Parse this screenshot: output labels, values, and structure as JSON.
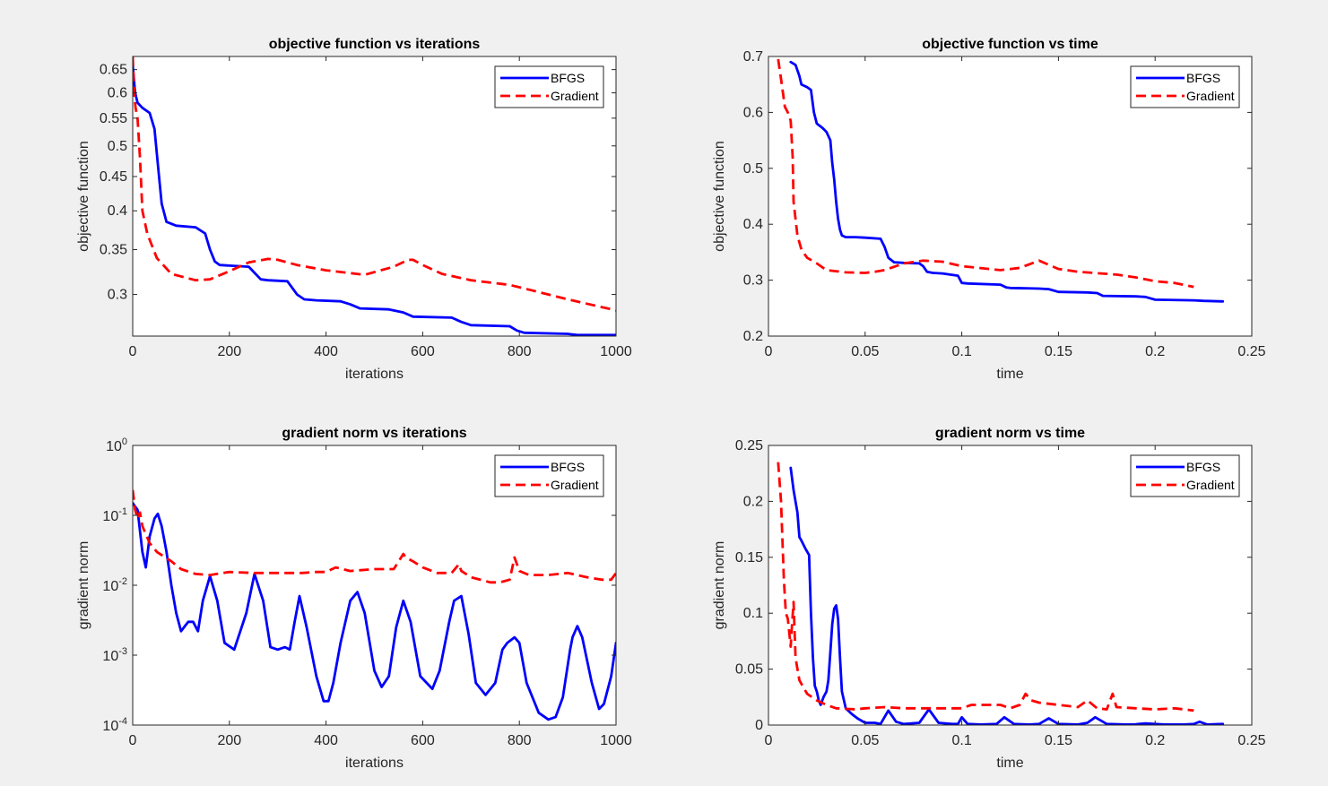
{
  "chart_data": [
    {
      "type": "line",
      "title": "objective function vs iterations",
      "xlabel": "iterations",
      "ylabel": "objective function",
      "xlim": [
        0,
        1000
      ],
      "ylim": [
        0.26,
        0.68
      ],
      "y_scale": "log",
      "xticks": [
        0,
        200,
        400,
        600,
        800,
        1000
      ],
      "xtick_labels": [
        "0",
        "200",
        "400",
        "600",
        "800",
        "1000"
      ],
      "yticks": [
        0.3,
        0.35,
        0.4,
        0.45,
        0.5,
        0.55,
        0.6,
        0.65
      ],
      "ytick_labels": [
        "0.3",
        "0.35",
        "0.4",
        "0.45",
        "0.5",
        "0.55",
        "0.6",
        "0.65"
      ],
      "legend": "top-right",
      "series": [
        {
          "name": "BFGS",
          "color": "#0000ff",
          "style": "solid",
          "x": [
            0,
            5,
            10,
            20,
            35,
            45,
            52,
            60,
            70,
            90,
            130,
            150,
            160,
            170,
            180,
            240,
            265,
            280,
            320,
            340,
            355,
            380,
            430,
            450,
            470,
            530,
            560,
            580,
            660,
            680,
            700,
            780,
            795,
            810,
            900,
            920,
            1000
          ],
          "y": [
            0.66,
            0.6,
            0.58,
            0.57,
            0.56,
            0.53,
            0.47,
            0.41,
            0.385,
            0.38,
            0.378,
            0.37,
            0.35,
            0.336,
            0.332,
            0.33,
            0.316,
            0.315,
            0.314,
            0.3,
            0.295,
            0.294,
            0.293,
            0.29,
            0.286,
            0.285,
            0.282,
            0.278,
            0.277,
            0.273,
            0.27,
            0.269,
            0.265,
            0.263,
            0.262,
            0.261,
            0.261
          ]
        },
        {
          "name": "Gradient",
          "color": "#ff0000",
          "style": "dashed",
          "x": [
            0,
            3,
            6,
            10,
            15,
            20,
            30,
            50,
            80,
            130,
            160,
            200,
            240,
            280,
            300,
            340,
            400,
            480,
            540,
            570,
            580,
            600,
            640,
            700,
            780,
            820,
            900,
            1000
          ],
          "y": [
            0.68,
            0.6,
            0.57,
            0.55,
            0.48,
            0.4,
            0.37,
            0.34,
            0.322,
            0.315,
            0.316,
            0.325,
            0.335,
            0.339,
            0.338,
            0.332,
            0.326,
            0.321,
            0.33,
            0.338,
            0.338,
            0.332,
            0.322,
            0.315,
            0.31,
            0.305,
            0.295,
            0.284
          ]
        }
      ]
    },
    {
      "type": "line",
      "title": "objective function vs time",
      "xlabel": "time",
      "ylabel": "objective function",
      "xlim": [
        0,
        0.25
      ],
      "ylim": [
        0.2,
        0.7
      ],
      "xticks": [
        0,
        0.05,
        0.1,
        0.15,
        0.2,
        0.25
      ],
      "xtick_labels": [
        "0",
        "0.05",
        "0.1",
        "0.15",
        "0.2",
        "0.25"
      ],
      "yticks": [
        0.2,
        0.3,
        0.4,
        0.5,
        0.6,
        0.7
      ],
      "ytick_labels": [
        "0.2",
        "0.3",
        "0.4",
        "0.5",
        "0.6",
        "0.7"
      ],
      "legend": "top-right",
      "series": [
        {
          "name": "BFGS",
          "color": "#0000ff",
          "style": "solid",
          "x": [
            0.0115,
            0.014,
            0.016,
            0.017,
            0.02,
            0.022,
            0.0235,
            0.025,
            0.028,
            0.03,
            0.032,
            0.033,
            0.034,
            0.035,
            0.036,
            0.037,
            0.038,
            0.04,
            0.045,
            0.05,
            0.058,
            0.06,
            0.062,
            0.065,
            0.07,
            0.078,
            0.08,
            0.082,
            0.085,
            0.09,
            0.098,
            0.1,
            0.103,
            0.12,
            0.123,
            0.125,
            0.14,
            0.145,
            0.15,
            0.165,
            0.17,
            0.173,
            0.19,
            0.195,
            0.2,
            0.22,
            0.225,
            0.235
          ],
          "y": [
            0.69,
            0.685,
            0.665,
            0.65,
            0.645,
            0.64,
            0.6,
            0.58,
            0.572,
            0.565,
            0.55,
            0.51,
            0.48,
            0.44,
            0.41,
            0.39,
            0.38,
            0.377,
            0.377,
            0.376,
            0.374,
            0.36,
            0.34,
            0.332,
            0.331,
            0.33,
            0.325,
            0.315,
            0.313,
            0.312,
            0.308,
            0.295,
            0.294,
            0.292,
            0.287,
            0.286,
            0.285,
            0.284,
            0.279,
            0.278,
            0.277,
            0.272,
            0.271,
            0.27,
            0.265,
            0.264,
            0.263,
            0.262
          ]
        },
        {
          "name": "Gradient",
          "color": "#ff0000",
          "style": "dashed",
          "x": [
            0.005,
            0.0065,
            0.0085,
            0.01,
            0.0115,
            0.0125,
            0.013,
            0.015,
            0.017,
            0.02,
            0.025,
            0.03,
            0.04,
            0.05,
            0.055,
            0.06,
            0.07,
            0.08,
            0.09,
            0.1,
            0.12,
            0.13,
            0.14,
            0.15,
            0.16,
            0.18,
            0.19,
            0.2,
            0.21,
            0.22
          ],
          "y": [
            0.695,
            0.66,
            0.61,
            0.6,
            0.585,
            0.52,
            0.44,
            0.38,
            0.355,
            0.34,
            0.33,
            0.318,
            0.314,
            0.313,
            0.315,
            0.318,
            0.33,
            0.335,
            0.333,
            0.325,
            0.318,
            0.322,
            0.335,
            0.32,
            0.315,
            0.31,
            0.305,
            0.298,
            0.295,
            0.288
          ]
        }
      ]
    },
    {
      "type": "line",
      "title": "gradient norm vs iterations",
      "xlabel": "iterations",
      "ylabel": "gradient norm",
      "xlim": [
        0,
        1000
      ],
      "ylim": [
        0.0001,
        1
      ],
      "y_scale": "log",
      "xticks": [
        0,
        200,
        400,
        600,
        800,
        1000
      ],
      "xtick_labels": [
        "0",
        "200",
        "400",
        "600",
        "800",
        "1000"
      ],
      "yticks": [
        0.0001,
        0.001,
        0.01,
        0.1,
        1
      ],
      "ytick_base": "10",
      "ytick_exponents": [
        "-4",
        "-3",
        "-2",
        "-1",
        "0"
      ],
      "legend": "top-right",
      "series": [
        {
          "name": "BFGS",
          "color": "#0000ff",
          "style": "solid",
          "x": [
            0,
            10,
            20,
            27,
            35,
            45,
            52,
            60,
            70,
            80,
            90,
            100,
            108,
            115,
            125,
            135,
            145,
            160,
            175,
            190,
            210,
            235,
            252,
            270,
            285,
            300,
            315,
            325,
            335,
            345,
            360,
            380,
            395,
            405,
            415,
            430,
            450,
            465,
            480,
            500,
            515,
            530,
            545,
            560,
            575,
            595,
            620,
            635,
            655,
            665,
            680,
            695,
            710,
            730,
            750,
            765,
            775,
            790,
            800,
            815,
            840,
            860,
            875,
            890,
            905,
            910,
            920,
            930,
            950,
            965,
            975,
            990,
            1000
          ],
          "y": [
            0.15,
            0.12,
            0.03,
            0.018,
            0.05,
            0.09,
            0.105,
            0.07,
            0.03,
            0.01,
            0.004,
            0.0022,
            0.0026,
            0.003,
            0.003,
            0.0022,
            0.006,
            0.0135,
            0.006,
            0.0015,
            0.0012,
            0.004,
            0.0145,
            0.006,
            0.0013,
            0.0012,
            0.0013,
            0.0012,
            0.003,
            0.007,
            0.0025,
            0.0005,
            0.00022,
            0.00022,
            0.0004,
            0.0015,
            0.006,
            0.008,
            0.004,
            0.0006,
            0.00035,
            0.0005,
            0.0025,
            0.006,
            0.003,
            0.0005,
            0.00033,
            0.0006,
            0.003,
            0.006,
            0.007,
            0.002,
            0.0004,
            0.00027,
            0.0004,
            0.0012,
            0.0015,
            0.0018,
            0.0015,
            0.0004,
            0.00015,
            0.00012,
            0.00013,
            0.00025,
            0.0012,
            0.0018,
            0.0026,
            0.0018,
            0.0004,
            0.00017,
            0.0002,
            0.0005,
            0.0015
          ]
        },
        {
          "name": "Gradient",
          "color": "#ff0000",
          "style": "dashed",
          "x": [
            0,
            5,
            10,
            15,
            20,
            35,
            50,
            80,
            100,
            130,
            160,
            200,
            250,
            300,
            350,
            380,
            400,
            420,
            450,
            500,
            540,
            560,
            565,
            580,
            600,
            630,
            660,
            675,
            680,
            700,
            740,
            760,
            780,
            790,
            800,
            820,
            860,
            900,
            940,
            970,
            990,
            1000
          ],
          "y": [
            0.23,
            0.12,
            0.09,
            0.11,
            0.07,
            0.04,
            0.03,
            0.022,
            0.017,
            0.0145,
            0.014,
            0.0155,
            0.015,
            0.015,
            0.015,
            0.0155,
            0.0155,
            0.018,
            0.016,
            0.017,
            0.017,
            0.028,
            0.025,
            0.022,
            0.018,
            0.015,
            0.015,
            0.02,
            0.016,
            0.013,
            0.011,
            0.011,
            0.012,
            0.025,
            0.016,
            0.014,
            0.014,
            0.015,
            0.013,
            0.012,
            0.012,
            0.015
          ]
        }
      ]
    },
    {
      "type": "line",
      "title": "gradient norm vs time",
      "xlabel": "time",
      "ylabel": "gradient norm",
      "xlim": [
        0,
        0.25
      ],
      "ylim": [
        0,
        0.25
      ],
      "xticks": [
        0,
        0.05,
        0.1,
        0.15,
        0.2,
        0.25
      ],
      "xtick_labels": [
        "0",
        "0.05",
        "0.1",
        "0.15",
        "0.2",
        "0.25"
      ],
      "yticks": [
        0,
        0.05,
        0.1,
        0.15,
        0.2,
        0.25
      ],
      "ytick_labels": [
        "0",
        "0.05",
        "0.1",
        "0.15",
        "0.2",
        "0.25"
      ],
      "legend": "top-right",
      "series": [
        {
          "name": "BFGS",
          "color": "#0000ff",
          "style": "solid",
          "x": [
            0.0115,
            0.013,
            0.015,
            0.016,
            0.017,
            0.019,
            0.021,
            0.022,
            0.023,
            0.024,
            0.025,
            0.026,
            0.027,
            0.0285,
            0.03,
            0.031,
            0.032,
            0.033,
            0.034,
            0.035,
            0.036,
            0.037,
            0.038,
            0.04,
            0.043,
            0.046,
            0.05,
            0.055,
            0.058,
            0.062,
            0.066,
            0.07,
            0.078,
            0.083,
            0.088,
            0.095,
            0.098,
            0.1,
            0.103,
            0.11,
            0.118,
            0.122,
            0.127,
            0.135,
            0.14,
            0.145,
            0.15,
            0.16,
            0.165,
            0.169,
            0.175,
            0.185,
            0.19,
            0.195,
            0.205,
            0.215,
            0.22,
            0.223,
            0.227,
            0.235
          ],
          "y": [
            0.23,
            0.21,
            0.19,
            0.168,
            0.165,
            0.158,
            0.152,
            0.1,
            0.06,
            0.035,
            0.03,
            0.022,
            0.018,
            0.025,
            0.03,
            0.04,
            0.065,
            0.09,
            0.104,
            0.107,
            0.095,
            0.06,
            0.03,
            0.015,
            0.01,
            0.006,
            0.002,
            0.002,
            0.001,
            0.013,
            0.003,
            0.001,
            0.002,
            0.014,
            0.002,
            0.001,
            0.001,
            0.007,
            0.001,
            0.0005,
            0.001,
            0.007,
            0.001,
            0.0005,
            0.001,
            0.006,
            0.001,
            0.0005,
            0.002,
            0.007,
            0.001,
            0.0005,
            0.0007,
            0.0015,
            0.0005,
            0.0005,
            0.001,
            0.003,
            0.0005,
            0.001
          ]
        },
        {
          "name": "Gradient",
          "color": "#ff0000",
          "style": "dashed",
          "x": [
            0.005,
            0.0065,
            0.008,
            0.009,
            0.01,
            0.0115,
            0.012,
            0.013,
            0.014,
            0.016,
            0.02,
            0.025,
            0.03,
            0.035,
            0.045,
            0.05,
            0.06,
            0.07,
            0.09,
            0.1,
            0.105,
            0.12,
            0.125,
            0.13,
            0.133,
            0.136,
            0.14,
            0.15,
            0.16,
            0.16,
            0.165,
            0.17,
            0.175,
            0.178,
            0.18,
            0.19,
            0.2,
            0.21,
            0.22
          ],
          "y": [
            0.235,
            0.2,
            0.13,
            0.1,
            0.095,
            0.07,
            0.085,
            0.11,
            0.06,
            0.04,
            0.028,
            0.022,
            0.018,
            0.015,
            0.014,
            0.015,
            0.016,
            0.015,
            0.015,
            0.015,
            0.018,
            0.018,
            0.015,
            0.018,
            0.028,
            0.022,
            0.02,
            0.018,
            0.016,
            0.016,
            0.022,
            0.015,
            0.014,
            0.028,
            0.016,
            0.015,
            0.014,
            0.015,
            0.013
          ]
        }
      ]
    }
  ]
}
